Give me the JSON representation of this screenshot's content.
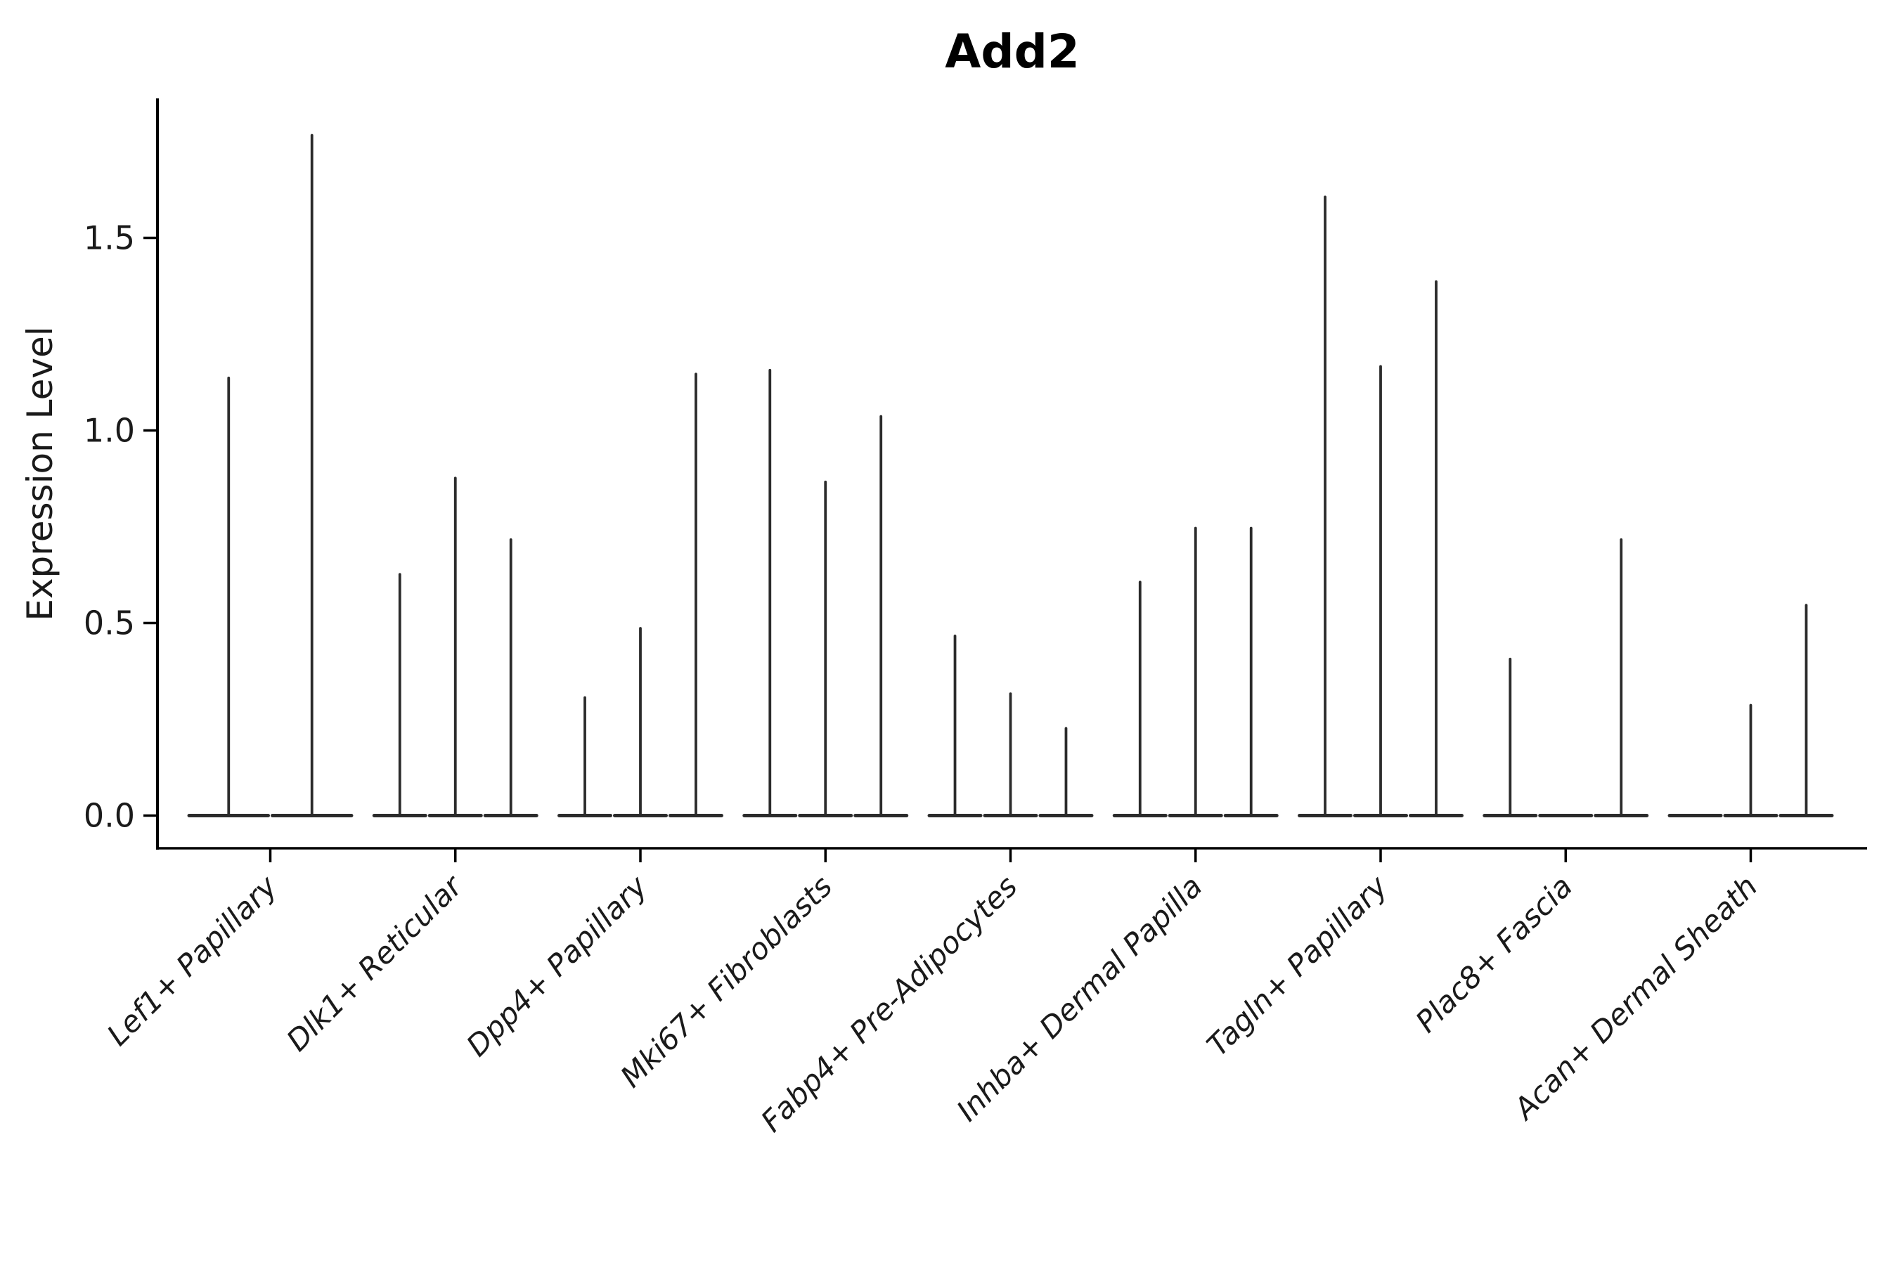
{
  "figure": {
    "title": "Add2",
    "background_color": "#ffffff"
  },
  "chart_data": {
    "type": "violin",
    "title": "Add2",
    "xlabel": "",
    "ylabel": "Expression Level",
    "ylim": [
      -0.085,
      1.862
    ],
    "yticks": [
      0.0,
      0.5,
      1.0,
      1.5
    ],
    "ytick_labels": [
      "0.0",
      "0.5",
      "1.0",
      "1.5"
    ],
    "grid": false,
    "legend": "none",
    "violin_color": "#2b2b2b",
    "axis_color": "#000000",
    "x_label_rotation_deg": 45,
    "description": "Thin spike violins; each group shows 2-3 violins whose bodies are flat at 0 with a narrow spike up to the maximum expression value. A value of 0 means a flat violin with no spike.",
    "categories": [
      "Lef1+ Papillary",
      "Dlk1+ Reticular",
      "Dpp4+ Papillary",
      "Mki67+ Fibroblasts",
      "Fabp4+ Pre-Adipocytes",
      "Inhba+ Dermal Papilla",
      "Tagln+ Papillary",
      "Plac8+ Fascia",
      "Acan+ Dermal Sheath"
    ],
    "groups": [
      {
        "label": "Lef1+ Papillary",
        "violin_max": [
          1.14,
          1.77
        ]
      },
      {
        "label": "Dlk1+ Reticular",
        "violin_max": [
          0.63,
          0.88,
          0.72
        ]
      },
      {
        "label": "Dpp4+ Papillary",
        "violin_max": [
          0.31,
          0.49,
          1.15
        ]
      },
      {
        "label": "Mki67+ Fibroblasts",
        "violin_max": [
          1.16,
          0.87,
          1.04
        ]
      },
      {
        "label": "Fabp4+ Pre-Adipocytes",
        "violin_max": [
          0.47,
          0.32,
          0.23
        ]
      },
      {
        "label": "Inhba+ Dermal Papilla",
        "violin_max": [
          0.61,
          0.75,
          0.75
        ]
      },
      {
        "label": "Tagln+ Papillary",
        "violin_max": [
          1.61,
          1.17,
          1.39
        ]
      },
      {
        "label": "Plac8+ Fascia",
        "violin_max": [
          0.41,
          0.0,
          0.72
        ]
      },
      {
        "label": "Acan+ Dermal Sheath",
        "violin_max": [
          0.0,
          0.29,
          0.55
        ]
      }
    ]
  }
}
